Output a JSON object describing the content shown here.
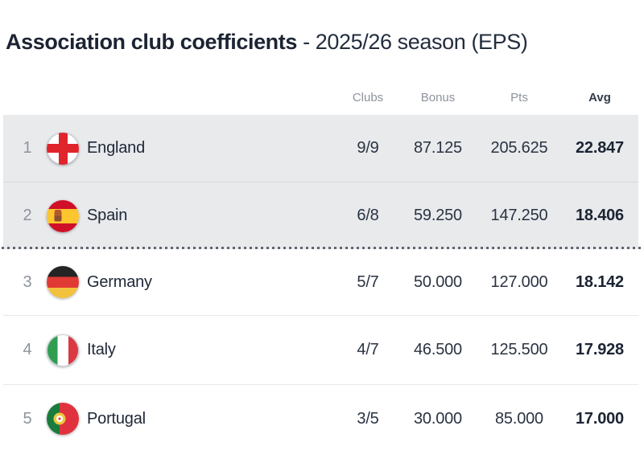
{
  "title": {
    "main": "Association club coefficients",
    "season": "- 2025/26 season (EPS)"
  },
  "table": {
    "headers": {
      "clubs": "Clubs",
      "bonus": "Bonus",
      "pts": "Pts",
      "avg": "Avg"
    },
    "rows": [
      {
        "rank": "1",
        "country": "England",
        "flag": "england",
        "clubs": "9/9",
        "bonus": "87.125",
        "pts": "205.625",
        "avg": "22.847",
        "highlight": true,
        "divider": "inner"
      },
      {
        "rank": "2",
        "country": "Spain",
        "flag": "spain",
        "clubs": "6/8",
        "bonus": "59.250",
        "pts": "147.250",
        "avg": "18.406",
        "highlight": true,
        "divider": "dotted"
      },
      {
        "rank": "3",
        "country": "Germany",
        "flag": "germany",
        "clubs": "5/7",
        "bonus": "50.000",
        "pts": "127.000",
        "avg": "18.142",
        "highlight": false,
        "divider": "solid"
      },
      {
        "rank": "4",
        "country": "Italy",
        "flag": "italy",
        "clubs": "4/7",
        "bonus": "46.500",
        "pts": "125.500",
        "avg": "17.928",
        "highlight": false,
        "divider": "solid"
      },
      {
        "rank": "5",
        "country": "Portugal",
        "flag": "portugal",
        "clubs": "3/5",
        "bonus": "30.000",
        "pts": "85.000",
        "avg": "17.000",
        "highlight": false,
        "divider": "none"
      }
    ]
  },
  "colors": {
    "highlight_row": "#e8eaec",
    "title_text": "#1c2433",
    "muted_text": "#8d939c",
    "value_text": "#2a3342",
    "dotted_divider": "#5d6570",
    "solid_divider": "#e6e8eb"
  }
}
